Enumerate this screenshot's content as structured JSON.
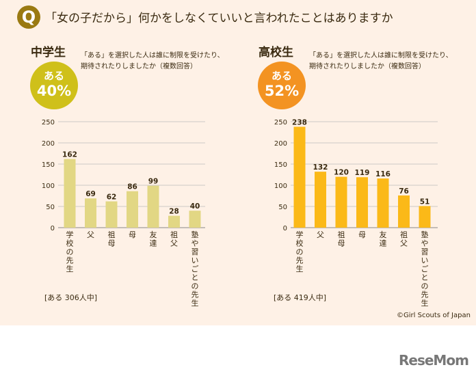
{
  "question": {
    "icon": "Q",
    "text": "「女の子だから」何かをしなくていいと言われたことはありますか"
  },
  "chart_data": [
    {
      "type": "bar",
      "title": "中学生",
      "subtitle": "「ある」を選択した人は誰に制限を受けたり、期待されたりしましたか（複数回答）",
      "badge_label": "ある",
      "badge_value": "40%",
      "badge_color": "#cfc01a",
      "bar_color": "#e2d784",
      "total": "[ある 306人中]",
      "categories": [
        "学校の先生",
        "父",
        "祖母",
        "母",
        "友達",
        "祖父",
        "塾や習いごとの先生"
      ],
      "values": [
        162,
        69,
        62,
        86,
        99,
        28,
        40
      ],
      "yticks": [
        0,
        50,
        100,
        150,
        200,
        250
      ],
      "ylim": [
        0,
        250
      ]
    },
    {
      "type": "bar",
      "title": "高校生",
      "subtitle": "「ある」を選択した人は誰に制限を受けたり、期待されたりしましたか（複数回答）",
      "badge_label": "ある",
      "badge_value": "52%",
      "badge_color": "#f39322",
      "bar_color": "#fbb918",
      "total": "[ある 419人中]",
      "categories": [
        "学校の先生",
        "父",
        "祖母",
        "母",
        "友達",
        "祖父",
        "塾や習いごとの先生"
      ],
      "values": [
        238,
        132,
        120,
        119,
        116,
        76,
        51
      ],
      "yticks": [
        0,
        50,
        100,
        150,
        200,
        250
      ],
      "ylim": [
        0,
        250
      ]
    }
  ],
  "copyright": "©Girl Scouts of Japan",
  "logo": "ReseMom"
}
